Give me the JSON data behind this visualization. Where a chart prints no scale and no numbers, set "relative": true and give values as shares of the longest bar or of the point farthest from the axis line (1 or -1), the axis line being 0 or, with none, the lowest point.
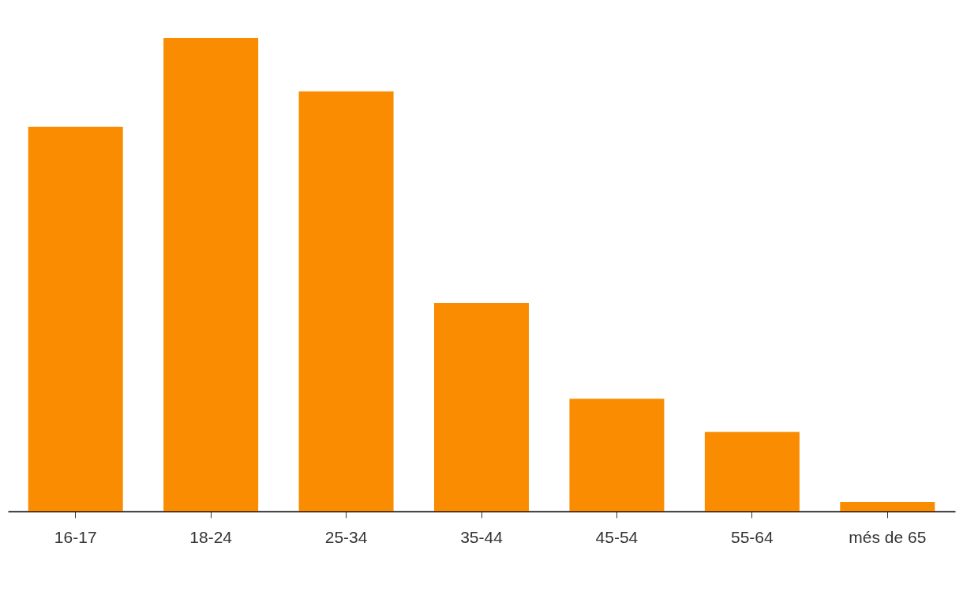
{
  "chart_data": {
    "type": "bar",
    "relative": true,
    "categories": [
      "16-17",
      "18-24",
      "25-34",
      "35-44",
      "45-54",
      "55-64",
      "més de 65"
    ],
    "values": [
      0.812,
      1,
      0.887,
      0.44,
      0.238,
      0.168,
      0.02
    ],
    "color": "#f98c00"
  }
}
